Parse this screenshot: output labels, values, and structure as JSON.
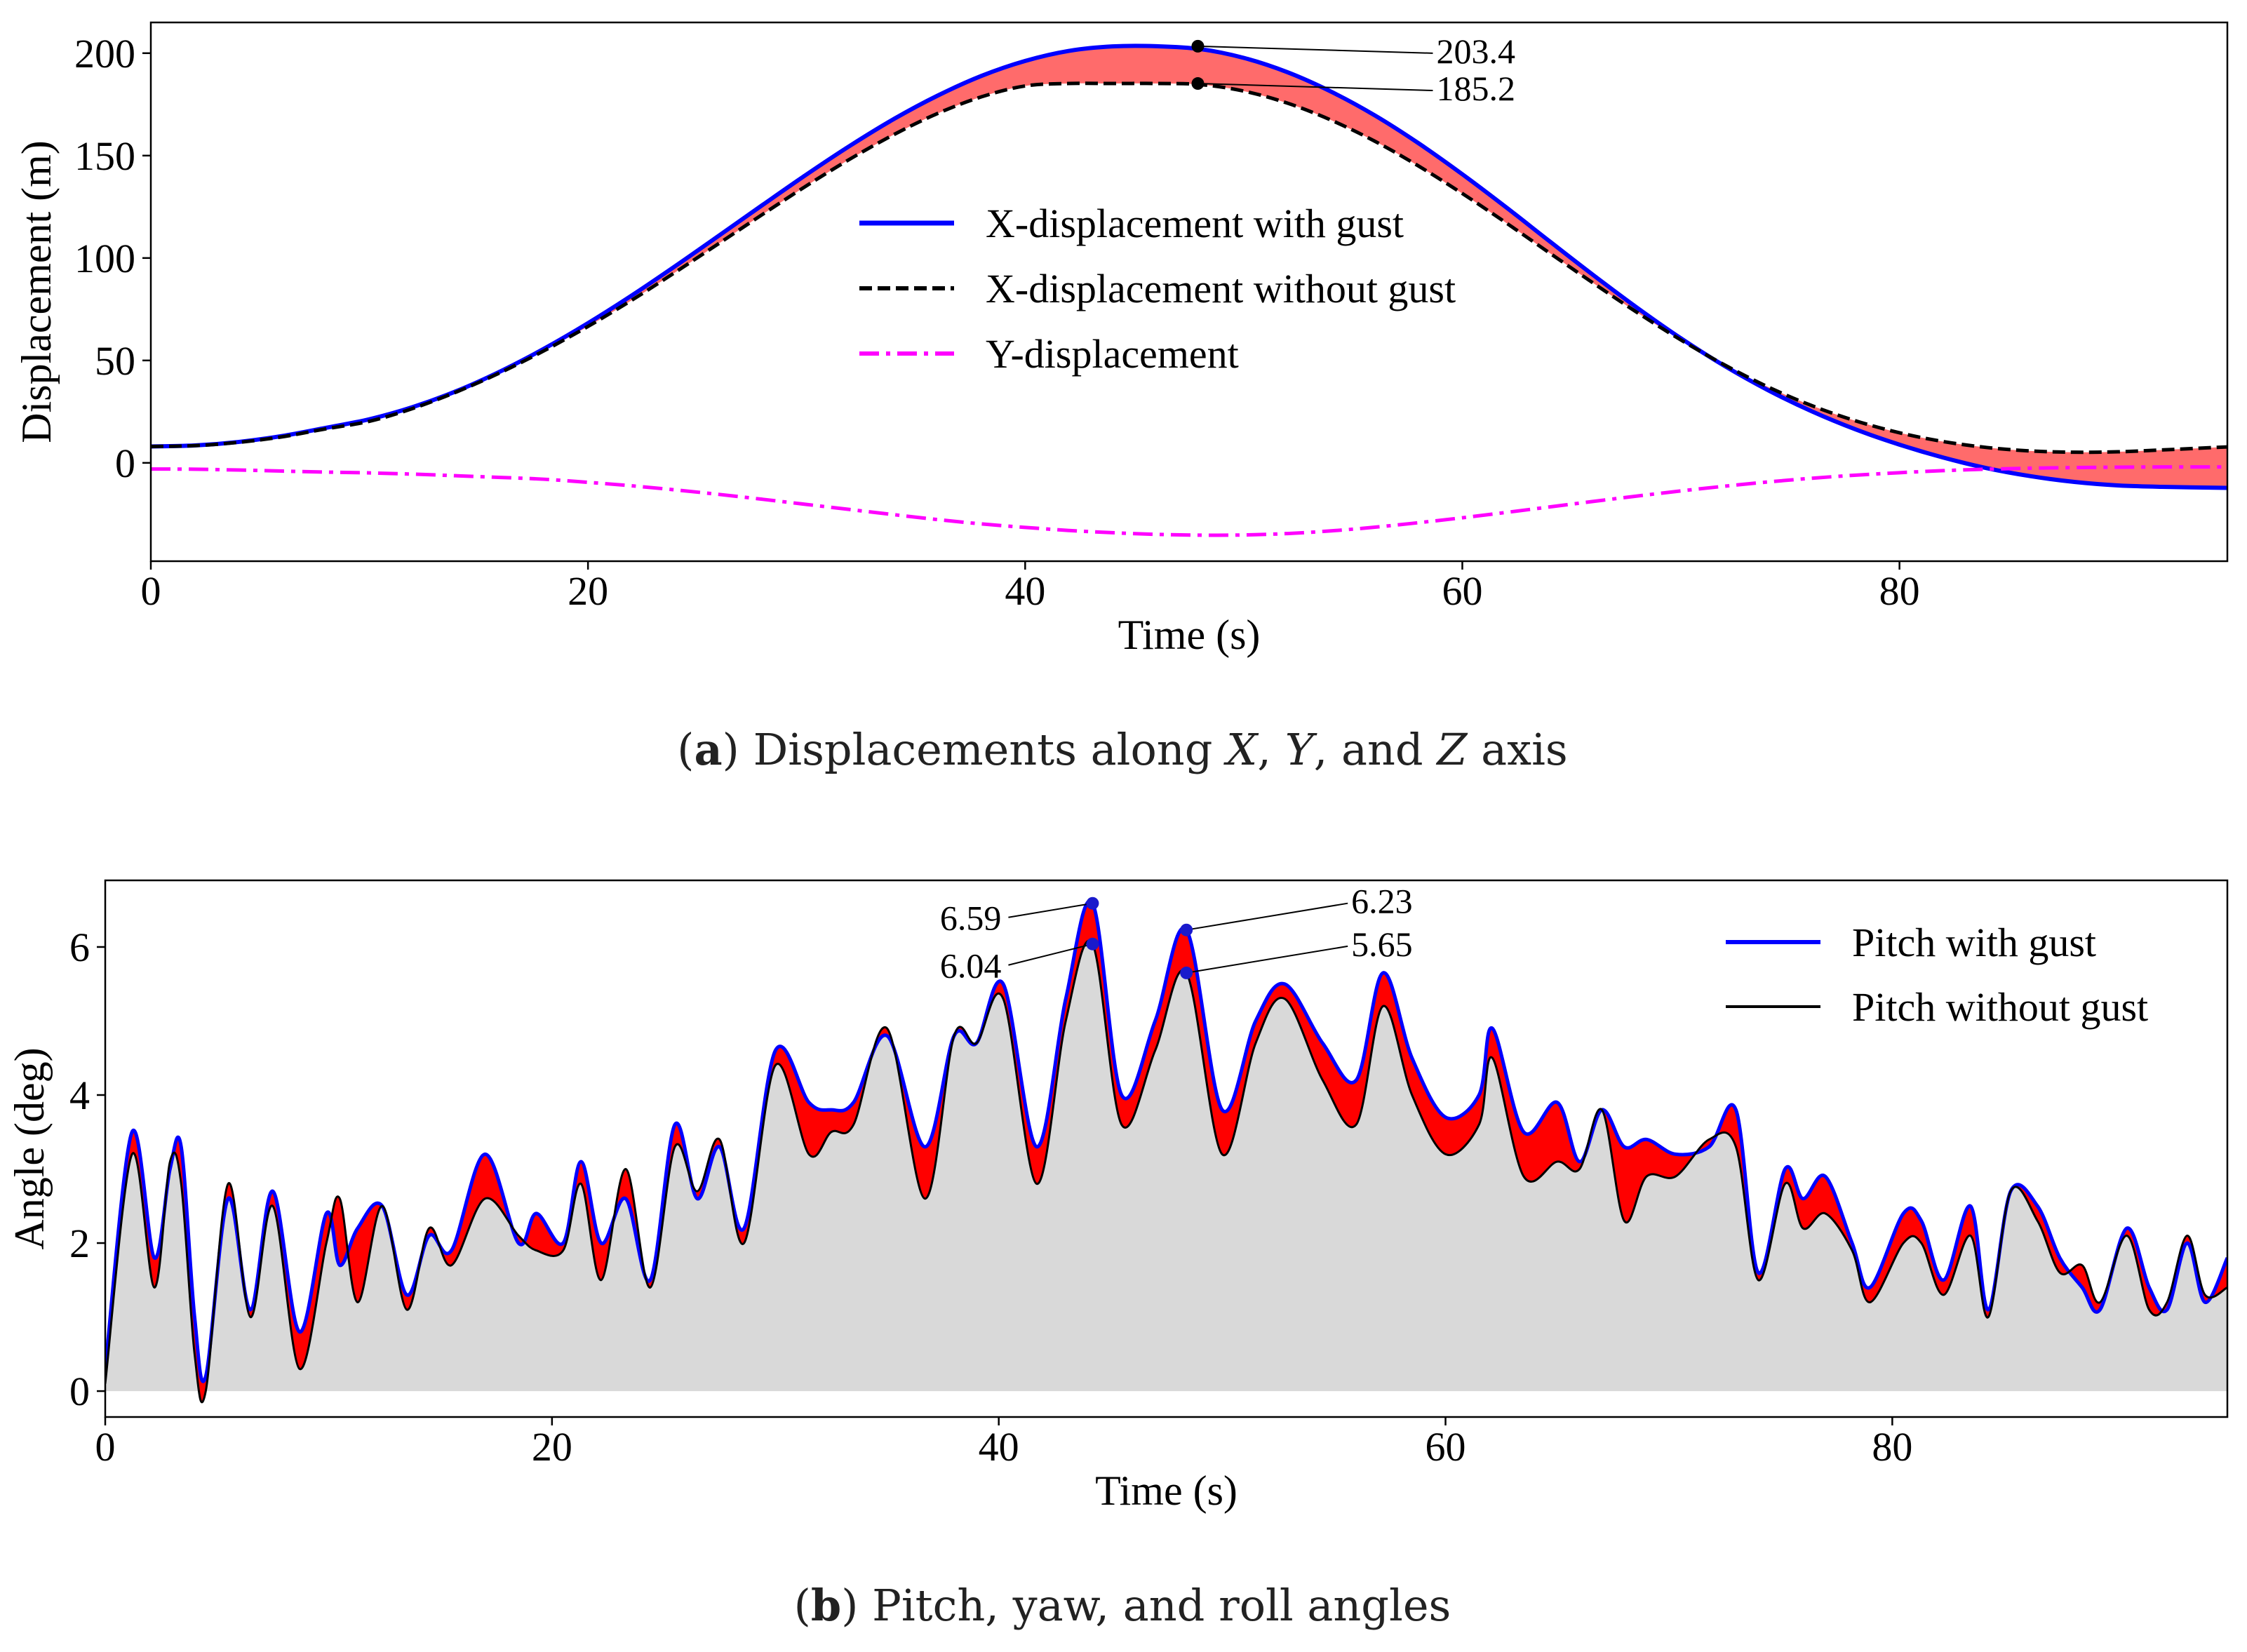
{
  "chart_data": [
    {
      "type": "line",
      "panel_id": "a",
      "caption": {
        "paren_open": "(",
        "letter": "a",
        "paren_close": ")",
        "text_1": " Displacements along ",
        "var_x": "X",
        "sep_1": ", ",
        "var_y": "Y",
        "sep_2": ", and ",
        "var_z": "Z",
        "text_2": " axis"
      },
      "xlabel": "Time (s)",
      "ylabel": "Displacement (m)",
      "xlim": [
        0,
        95
      ],
      "ylim": [
        -48,
        215
      ],
      "xticks": [
        0,
        20,
        40,
        60,
        80
      ],
      "yticks": [
        0,
        50,
        100,
        150,
        200
      ],
      "x": [
        0,
        2,
        4,
        6,
        8,
        10,
        12,
        14,
        16,
        18,
        20,
        22,
        24,
        26,
        28,
        30,
        32,
        34,
        36,
        38,
        40,
        42,
        44,
        46,
        48,
        50,
        52,
        54,
        56,
        58,
        60,
        62,
        64,
        66,
        68,
        70,
        72,
        74,
        76,
        78,
        80,
        82,
        84,
        86,
        88,
        90,
        92,
        95
      ],
      "series": [
        {
          "name": "X-displacement with gust",
          "color": "#0000ff",
          "style": "solid",
          "values": [
            8.0,
            8.5,
            10.2,
            13.1,
            17.1,
            21.3,
            27.3,
            35.1,
            44.7,
            55.8,
            68.2,
            81.7,
            96.1,
            111.0,
            126.0,
            140.8,
            154.9,
            167.9,
            179.3,
            188.9,
            196.2,
            201.1,
            203.3,
            203.4,
            202.0,
            197.7,
            190.7,
            181.2,
            169.6,
            156.0,
            140.9,
            124.8,
            108.1,
            91.6,
            75.7,
            60.8,
            47.3,
            35.4,
            25.1,
            16.3,
            8.9,
            2.6,
            -2.6,
            -6.5,
            -9.3,
            -11.0,
            -11.7,
            -12.2
          ]
        },
        {
          "name": "X-displacement without gust",
          "color": "#000000",
          "style": "dashed",
          "values": [
            8.0,
            8.4,
            10.0,
            12.7,
            16.6,
            20.3,
            26.6,
            34.7,
            44.1,
            54.8,
            66.6,
            79.4,
            93.1,
            107.2,
            121.4,
            135.3,
            148.4,
            160.3,
            170.6,
            178.7,
            184.0,
            185.2,
            185.2,
            185.2,
            184.7,
            181.5,
            175.6,
            167.3,
            157.0,
            144.9,
            131.5,
            117.2,
            102.4,
            87.7,
            73.4,
            60.0,
            47.8,
            37.0,
            27.9,
            20.5,
            14.7,
            10.4,
            7.5,
            5.8,
            5.2,
            5.4,
            6.3,
            7.8
          ]
        },
        {
          "name": "Y-displacement",
          "color": "#ff00ff",
          "style": "dashdot",
          "values": [
            -3.0,
            -3.1,
            -3.5,
            -4.0,
            -4.5,
            -4.9,
            -5.5,
            -6.3,
            -7.1,
            -8.0,
            -9.5,
            -11.2,
            -13.2,
            -15.4,
            -17.8,
            -20.3,
            -22.8,
            -25.3,
            -27.7,
            -29.8,
            -31.5,
            -33.0,
            -34.1,
            -34.9,
            -35.3,
            -35.2,
            -34.5,
            -33.2,
            -31.4,
            -29.2,
            -26.8,
            -24.2,
            -21.5,
            -18.8,
            -16.2,
            -13.7,
            -11.4,
            -9.3,
            -7.5,
            -6.0,
            -4.8,
            -3.8,
            -3.1,
            -2.6,
            -2.3,
            -2.1,
            -2.0,
            -2.0
          ]
        }
      ],
      "annotations": [
        {
          "label": "203.4",
          "x": 47.9,
          "y": 203.4
        },
        {
          "label": "185.2",
          "x": 47.9,
          "y": 185.2
        }
      ],
      "legend": "center",
      "grid": false
    },
    {
      "type": "line",
      "panel_id": "b",
      "caption": {
        "paren_open": "(",
        "letter": "b",
        "paren_close": ")",
        "text_1": " Pitch, yaw, and roll angles"
      },
      "xlabel": "Time (s)",
      "ylabel": "Angle (deg)",
      "xlim": [
        0,
        95
      ],
      "ylim": [
        -0.35,
        6.9
      ],
      "xticks": [
        0,
        20,
        40,
        60,
        80
      ],
      "yticks": [
        0,
        2,
        4,
        6
      ],
      "x": [
        0.0,
        1.2,
        2.2,
        2.9,
        3.4,
        4.0,
        4.5,
        5.5,
        6.5,
        7.5,
        8.7,
        9.9,
        10.5,
        11.3,
        12.4,
        13.5,
        14.5,
        15.5,
        17.0,
        18.5,
        19.3,
        20.5,
        21.3,
        22.2,
        23.3,
        24.4,
        25.5,
        26.5,
        27.5,
        28.6,
        30.0,
        31.5,
        32.5,
        33.5,
        35.0,
        36.7,
        38.0,
        39.0,
        40.2,
        41.7,
        43.0,
        44.2,
        45.5,
        47.0,
        48.4,
        50.0,
        51.5,
        52.8,
        54.5,
        56.0,
        57.2,
        58.5,
        60.0,
        61.5,
        62.1,
        63.5,
        65.0,
        66.0,
        67.0,
        68.0,
        69.0,
        70.3,
        71.8,
        73.0,
        74.0,
        75.2,
        76.0,
        77.0,
        78.2,
        79.0,
        80.5,
        81.3,
        82.3,
        83.5,
        84.3,
        85.3,
        86.5,
        87.5,
        88.5,
        89.3,
        90.5,
        91.5,
        92.3,
        93.2,
        94.0,
        95.0
      ],
      "series": [
        {
          "name": "Pitch with gust",
          "color": "#0000ff",
          "style": "solid",
          "values": [
            0.3,
            3.5,
            1.8,
            3.0,
            3.3,
            1.0,
            0.2,
            2.6,
            1.1,
            2.7,
            0.8,
            2.4,
            1.7,
            2.2,
            2.5,
            1.3,
            2.1,
            1.9,
            3.2,
            2.0,
            2.4,
            2.0,
            3.1,
            2.0,
            2.6,
            1.5,
            3.6,
            2.6,
            3.3,
            2.2,
            4.6,
            3.9,
            3.8,
            3.9,
            4.8,
            3.3,
            4.8,
            4.7,
            5.5,
            3.3,
            5.3,
            6.59,
            4.0,
            5.0,
            6.23,
            3.8,
            5.0,
            5.5,
            4.7,
            4.2,
            5.65,
            4.5,
            3.7,
            4.0,
            4.9,
            3.5,
            3.9,
            3.1,
            3.8,
            3.3,
            3.4,
            3.2,
            3.3,
            3.8,
            1.6,
            3.0,
            2.6,
            2.9,
            2.0,
            1.4,
            2.4,
            2.3,
            1.5,
            2.5,
            1.1,
            2.7,
            2.5,
            1.8,
            1.4,
            1.1,
            2.2,
            1.4,
            1.1,
            2.0,
            1.2,
            1.8
          ]
        },
        {
          "name": "Pitch without gust",
          "color": "#000000",
          "style": "solid",
          "values": [
            0.1,
            3.2,
            1.4,
            3.1,
            2.8,
            0.5,
            0.0,
            2.8,
            1.0,
            2.5,
            0.3,
            2.0,
            2.6,
            1.2,
            2.5,
            1.1,
            2.2,
            1.7,
            2.6,
            2.1,
            1.9,
            1.9,
            2.8,
            1.5,
            3.0,
            1.4,
            3.3,
            2.7,
            3.4,
            2.0,
            4.4,
            3.2,
            3.5,
            3.6,
            4.9,
            2.6,
            4.8,
            4.7,
            5.3,
            2.8,
            5.0,
            6.04,
            3.6,
            4.6,
            5.65,
            3.2,
            4.7,
            5.3,
            4.2,
            3.6,
            5.2,
            4.0,
            3.2,
            3.6,
            4.5,
            2.9,
            3.1,
            3.0,
            3.8,
            2.3,
            2.9,
            2.9,
            3.4,
            3.3,
            1.5,
            2.8,
            2.2,
            2.4,
            1.9,
            1.2,
            2.0,
            2.0,
            1.3,
            2.1,
            1.0,
            2.7,
            2.3,
            1.6,
            1.7,
            1.2,
            2.1,
            1.1,
            1.2,
            2.1,
            1.3,
            1.4
          ]
        }
      ],
      "fill_colors": {
        "between": "#ff0000",
        "under": "#d9d9d9"
      },
      "annotations": [
        {
          "label": "6.59",
          "x": 44.2,
          "y": 6.59
        },
        {
          "label": "6.04",
          "x": 44.2,
          "y": 6.04
        },
        {
          "label": "6.23",
          "x": 48.4,
          "y": 6.23
        },
        {
          "label": "5.65",
          "x": 48.4,
          "y": 5.65
        }
      ],
      "legend": "top-right",
      "grid": false
    }
  ],
  "colors": {
    "fill_between_a": "#ff6b6b",
    "fill_between_b": "#ff0000",
    "fill_under_b": "#d9d9d9",
    "axis": "#000000"
  }
}
